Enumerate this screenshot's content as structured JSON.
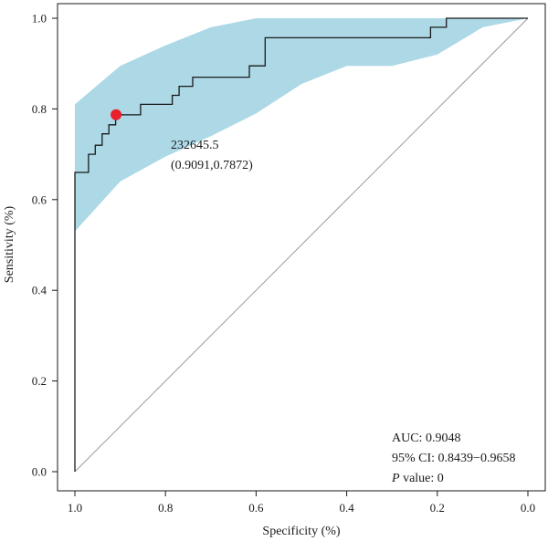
{
  "chart_data": {
    "type": "line",
    "title": "",
    "xlabel": "Specificity (%)",
    "ylabel": "Sensitivity (%)",
    "x_reversed": true,
    "xlim": [
      1.0,
      0.0
    ],
    "ylim": [
      0.0,
      1.0
    ],
    "x_ticks": [
      1.0,
      0.8,
      0.6,
      0.4,
      0.2,
      0.0
    ],
    "x_tick_labels": [
      "1.0",
      "0.8",
      "0.6",
      "0.4",
      "0.2",
      "0.0"
    ],
    "y_ticks": [
      0.0,
      0.2,
      0.4,
      0.6,
      0.8,
      1.0
    ],
    "y_tick_labels": [
      "0.0",
      "0.2",
      "0.4",
      "0.6",
      "0.8",
      "1.0"
    ],
    "grid": false,
    "legend": "none",
    "colors": {
      "roc_line": "#1a1a1a",
      "ci_band": "#add8e6",
      "reference_line": "#9a9a9a",
      "optimal_point": "#e8202a"
    },
    "series": [
      {
        "kind": "roc_curve",
        "x": [
          1.0,
          1.0,
          0.97,
          0.97,
          0.955,
          0.955,
          0.94,
          0.94,
          0.925,
          0.925,
          0.91,
          0.91,
          0.895,
          0.895,
          0.855,
          0.855,
          0.785,
          0.785,
          0.77,
          0.77,
          0.74,
          0.74,
          0.615,
          0.615,
          0.58,
          0.58,
          0.215,
          0.215,
          0.18,
          0.18,
          0.0
        ],
        "y": [
          0.0,
          0.66,
          0.66,
          0.7,
          0.7,
          0.72,
          0.72,
          0.745,
          0.745,
          0.765,
          0.765,
          0.7872,
          0.7872,
          0.787,
          0.787,
          0.81,
          0.81,
          0.83,
          0.83,
          0.85,
          0.85,
          0.87,
          0.87,
          0.895,
          0.895,
          0.957,
          0.957,
          0.98,
          0.98,
          1.0,
          1.0
        ]
      },
      {
        "kind": "ci_band_upper",
        "x": [
          1.0,
          0.9,
          0.8,
          0.7,
          0.6,
          0.5,
          0.4,
          0.3,
          0.2,
          0.1,
          0.0
        ],
        "y": [
          0.81,
          0.895,
          0.94,
          0.98,
          1.0,
          1.0,
          1.0,
          1.0,
          1.0,
          1.0,
          1.0
        ]
      },
      {
        "kind": "ci_band_lower",
        "x": [
          1.0,
          0.9,
          0.8,
          0.7,
          0.6,
          0.5,
          0.4,
          0.3,
          0.2,
          0.1,
          0.0
        ],
        "y": [
          0.53,
          0.64,
          0.695,
          0.74,
          0.79,
          0.855,
          0.895,
          0.895,
          0.92,
          0.98,
          1.0
        ]
      },
      {
        "kind": "reference_line",
        "x": [
          1.0,
          0.0
        ],
        "y": [
          0.0,
          1.0
        ]
      }
    ],
    "optimal_point": {
      "x": 0.9091,
      "y": 0.7872,
      "threshold_label": "232645.5",
      "coord_label": "(0.9091,0.7872)"
    },
    "stats": {
      "auc_text": "AUC: 0.9048",
      "ci_text": "95% CI: 0.8439−0.9658",
      "p_label": "P",
      "p_rest": " value: 0"
    }
  }
}
